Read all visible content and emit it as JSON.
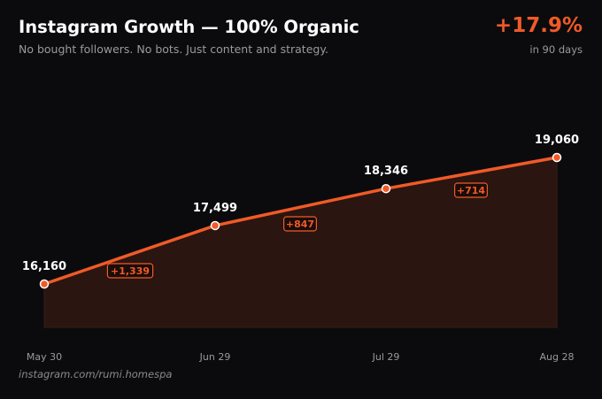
{
  "header": {
    "title": "Instagram Growth — 100% Organic",
    "subtitle": "No bought followers. No bots. Just content and strategy.",
    "growth_percent": "+17.9%",
    "growth_period": "in 90 days"
  },
  "footer": {
    "handle": "instagram.com/rumi.homespa"
  },
  "colors": {
    "accent": "#f05a28",
    "background": "#0b0b0d",
    "area_fill": "#2a1510",
    "text_primary": "#ffffff",
    "text_muted": "#9a9a9a"
  },
  "chart_data": {
    "type": "area",
    "title": "",
    "xlabel": "",
    "ylabel": "",
    "grid": false,
    "legend": "none",
    "categories": [
      "May 30",
      "Jun 29",
      "Jul 29",
      "Aug 28"
    ],
    "values": [
      16160,
      17499,
      18346,
      19060
    ],
    "value_labels": [
      "16,160",
      "17,499",
      "18,346",
      "19,060"
    ],
    "deltas": [
      "+1,339",
      "+847",
      "+714"
    ],
    "ylim": [
      15400,
      19500
    ]
  }
}
